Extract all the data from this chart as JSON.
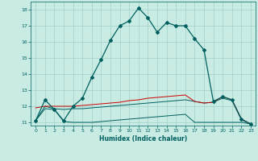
{
  "xlabel": "Humidex (Indice chaleur)",
  "xlim": [
    -0.5,
    23.5
  ],
  "ylim": [
    10.8,
    18.5
  ],
  "yticks": [
    11,
    12,
    13,
    14,
    15,
    16,
    17,
    18
  ],
  "xticks": [
    0,
    1,
    2,
    3,
    4,
    5,
    6,
    7,
    8,
    9,
    10,
    11,
    12,
    13,
    14,
    15,
    16,
    17,
    18,
    19,
    20,
    21,
    22,
    23
  ],
  "bg_color": "#c8ebe3",
  "grid_color": "#a0d0c8",
  "line_color": "#006060",
  "red_color": "#cc0000",
  "line1_x": [
    0,
    1,
    2,
    3,
    4,
    5,
    6,
    7,
    8,
    9,
    10,
    11,
    12,
    13,
    14,
    15,
    16,
    17,
    18,
    19,
    20,
    21,
    22,
    23
  ],
  "line1_y": [
    11.1,
    12.4,
    11.8,
    11.1,
    12.0,
    12.5,
    13.8,
    14.9,
    16.1,
    17.0,
    17.3,
    18.1,
    17.5,
    16.6,
    17.2,
    17.0,
    17.0,
    16.2,
    15.5,
    12.3,
    12.6,
    12.4,
    11.2,
    10.9
  ],
  "line2_x": [
    0,
    1,
    2,
    3,
    4,
    5,
    6,
    7,
    8,
    9,
    10,
    11,
    12,
    13,
    14,
    15,
    16,
    17,
    18,
    19,
    20,
    21,
    22,
    23
  ],
  "line2_y": [
    11.1,
    11.85,
    11.8,
    11.05,
    11.0,
    11.0,
    11.0,
    11.05,
    11.1,
    11.15,
    11.2,
    11.25,
    11.3,
    11.35,
    11.4,
    11.45,
    11.5,
    11.0,
    11.0,
    11.0,
    11.0,
    11.0,
    11.0,
    10.9
  ],
  "line3_x": [
    0,
    1,
    2,
    3,
    4,
    5,
    6,
    7,
    8,
    9,
    10,
    11,
    12,
    13,
    14,
    15,
    16,
    17,
    18,
    19,
    20,
    21,
    22,
    23
  ],
  "line3_y": [
    11.9,
    12.0,
    12.0,
    12.0,
    12.0,
    12.05,
    12.1,
    12.15,
    12.2,
    12.25,
    12.35,
    12.4,
    12.5,
    12.55,
    12.6,
    12.65,
    12.7,
    12.3,
    12.2,
    12.25,
    12.6,
    12.4,
    11.2,
    10.9
  ],
  "line4_x": [
    0,
    1,
    2,
    3,
    4,
    5,
    6,
    7,
    8,
    9,
    10,
    11,
    12,
    13,
    14,
    15,
    16,
    17,
    18,
    19,
    20,
    21,
    22,
    23
  ],
  "line4_y": [
    11.1,
    12.0,
    11.85,
    11.8,
    11.85,
    11.85,
    11.9,
    11.95,
    12.0,
    12.05,
    12.1,
    12.15,
    12.2,
    12.25,
    12.3,
    12.35,
    12.4,
    12.3,
    12.2,
    12.25,
    12.5,
    12.35,
    11.15,
    10.9
  ]
}
